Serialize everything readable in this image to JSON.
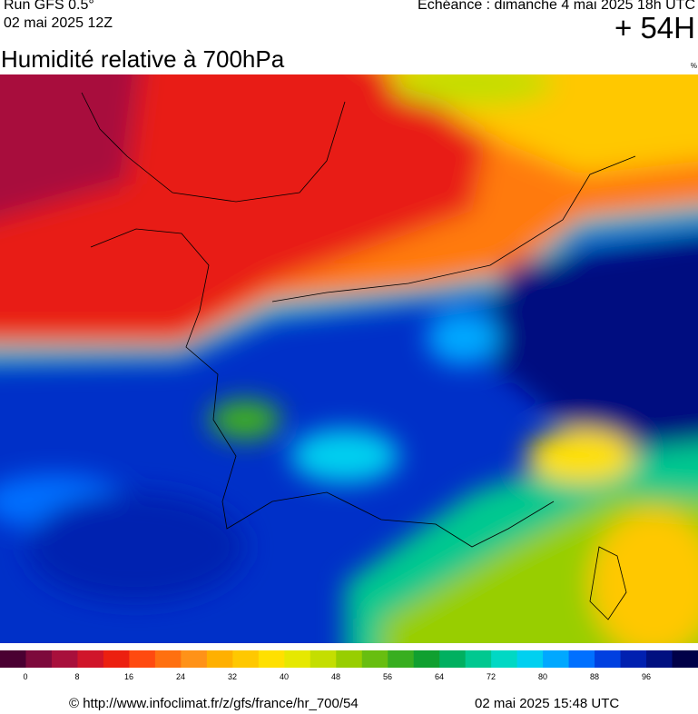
{
  "header": {
    "run": "Run GFS 0.5°",
    "run_date": "02 mai 2025 12Z",
    "echeance": "Echéance : dimanche 4 mai 2025 18h UTC",
    "offset": "+ 54H",
    "title": "Humidité relative à 700hPa",
    "unit": "%"
  },
  "legend": {
    "colors": [
      "#4a0032",
      "#7d0a3c",
      "#a8103c",
      "#d0152a",
      "#ec2010",
      "#ff4a10",
      "#ff7010",
      "#ff9218",
      "#ffb000",
      "#ffc800",
      "#ffe000",
      "#e6e800",
      "#c4de00",
      "#98ce00",
      "#68be10",
      "#38ae20",
      "#10a030",
      "#00b060",
      "#00c890",
      "#00d8c4",
      "#00d0f0",
      "#00a8ff",
      "#0070ff",
      "#0040e0",
      "#0020b0",
      "#001080",
      "#000048"
    ],
    "ticks": [
      0,
      8,
      16,
      24,
      32,
      40,
      48,
      56,
      64,
      72,
      80,
      88,
      96
    ]
  },
  "footer": {
    "source": "© http://www.infoclimat.fr/z/gfs/france/hr_700/54",
    "timestamp": "02 mai 2025 15:48 UTC"
  }
}
